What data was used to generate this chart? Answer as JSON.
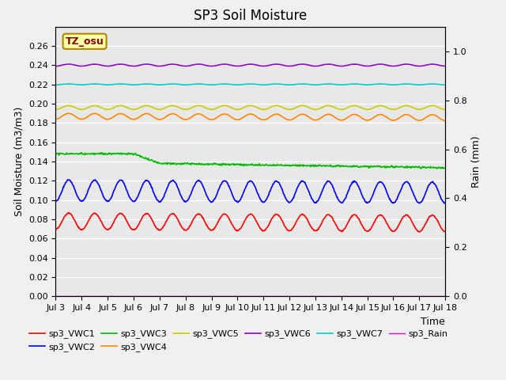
{
  "title": "SP3 Soil Moisture",
  "ylabel_left": "Soil Moisture (m3/m3)",
  "ylabel_right": "Rain (mm)",
  "xlabel": "Time",
  "annotation": "TZ_osu",
  "ylim_left": [
    0.0,
    0.28
  ],
  "ylim_right": [
    0.0,
    1.1
  ],
  "yticks_left": [
    0.0,
    0.02,
    0.04,
    0.06,
    0.08,
    0.1,
    0.12,
    0.14,
    0.16,
    0.18,
    0.2,
    0.22,
    0.24,
    0.26
  ],
  "yticks_right": [
    0.0,
    0.2,
    0.4,
    0.6,
    0.8,
    1.0
  ],
  "xtick_labels": [
    "Jul 3",
    "Jul 4",
    "Jul 5",
    "Jul 6",
    "Jul 7",
    "Jul 8",
    "Jul 9",
    "Jul 10",
    "Jul 11",
    "Jul 12",
    "Jul 13",
    "Jul 14",
    "Jul 15",
    "Jul 16",
    "Jul 17",
    "Jul 18"
  ],
  "series_order": [
    "sp3_VWC1",
    "sp3_VWC2",
    "sp3_VWC3",
    "sp3_VWC4",
    "sp3_VWC5",
    "sp3_VWC6",
    "sp3_VWC7"
  ],
  "series": {
    "sp3_VWC1": {
      "color": "#ff0000",
      "base": 0.078,
      "amplitude": 0.0085,
      "lw": 1.2
    },
    "sp3_VWC2": {
      "color": "#0000ff",
      "base": 0.11,
      "amplitude": 0.011,
      "lw": 1.2
    },
    "sp3_VWC3": {
      "color": "#00bb00",
      "base": 0.137,
      "amplitude": 0.0,
      "lw": 1.2,
      "special": true
    },
    "sp3_VWC4": {
      "color": "#ff8800",
      "base": 0.187,
      "amplitude": 0.003,
      "lw": 1.2
    },
    "sp3_VWC5": {
      "color": "#cccc00",
      "base": 0.196,
      "amplitude": 0.002,
      "lw": 1.2
    },
    "sp3_VWC6": {
      "color": "#9900cc",
      "base": 0.24,
      "amplitude": 0.001,
      "lw": 1.2
    },
    "sp3_VWC7": {
      "color": "#00cccc",
      "base": 0.22,
      "amplitude": 0.0005,
      "lw": 1.2
    }
  },
  "rain_color": "#ff00cc",
  "rain_lw": 1.0,
  "bg_color": "#e8e8e8",
  "grid_color": "#ffffff",
  "fig_bg": "#f0f0f0",
  "title_fontsize": 12,
  "label_fontsize": 9,
  "tick_fontsize": 8,
  "legend_fontsize": 8
}
